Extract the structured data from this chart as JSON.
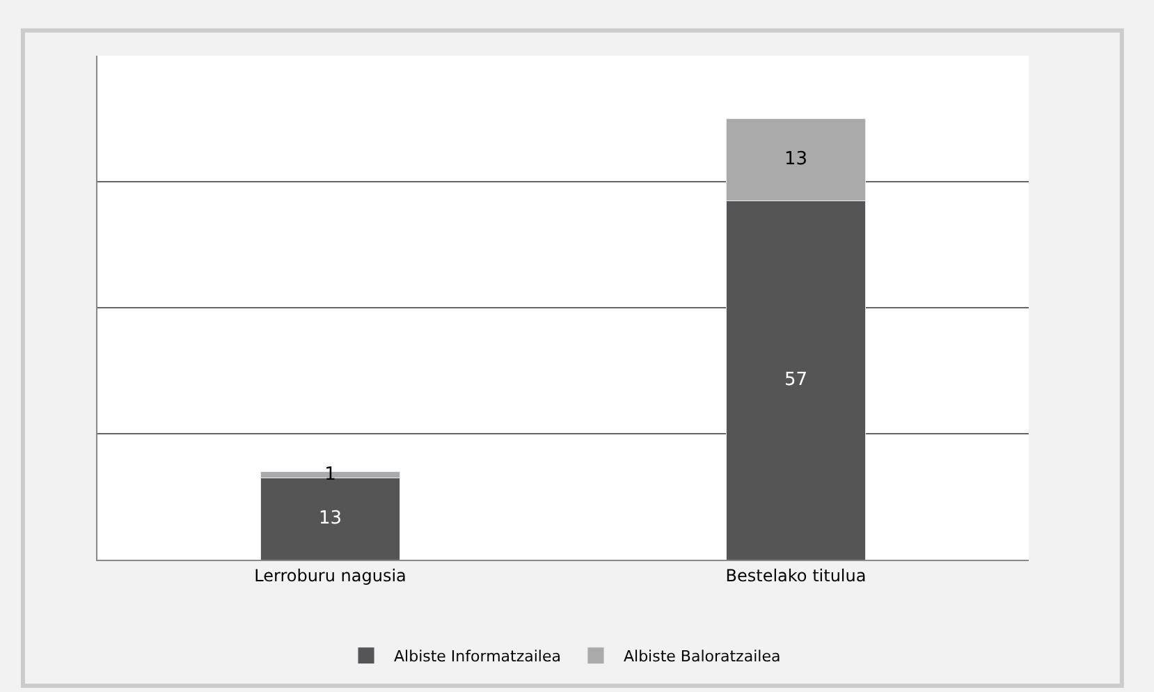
{
  "chart_data": {
    "type": "bar",
    "stacked": true,
    "categories": [
      "Lerroburu nagusia",
      "Bestelako titulua"
    ],
    "series": [
      {
        "name": "Albiste Informatzailea",
        "color": "#555555",
        "values": [
          13,
          57
        ]
      },
      {
        "name": "Albiste Baloratzailea",
        "color": "#aaaaaa",
        "values": [
          1,
          13
        ]
      }
    ],
    "data_labels": true,
    "ylim": [
      0,
      80
    ],
    "yticks": [
      {
        "value": 0,
        "label": null
      },
      {
        "value": 20,
        "label": null
      },
      {
        "value": 40,
        "label": null
      },
      {
        "value": 60,
        "label": null
      },
      {
        "value": 80,
        "label": null
      }
    ],
    "grid": "y",
    "legend": "bottom",
    "tick_labels": "x"
  }
}
